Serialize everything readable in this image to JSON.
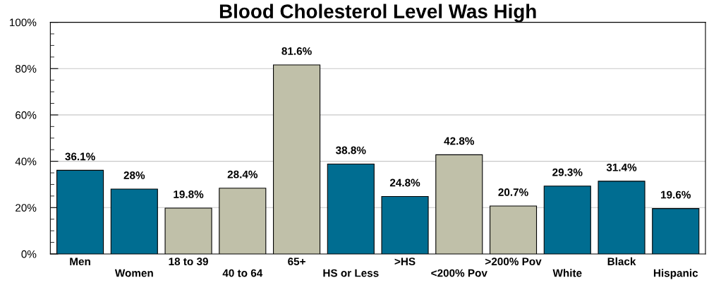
{
  "chart_data": {
    "type": "bar",
    "title": "Blood Cholesterol Level Was High",
    "categories": [
      "Men",
      "Women",
      "18 to 39",
      "40 to 64",
      "65+",
      "HS or Less",
      ">HS",
      "<200% Pov",
      ">200% Pov",
      "White",
      "Black",
      "Hispanic"
    ],
    "values": [
      36.1,
      28,
      19.8,
      28.4,
      81.6,
      38.8,
      24.8,
      42.8,
      20.7,
      29.3,
      31.4,
      19.6
    ],
    "colors": [
      "#006d91",
      "#006d91",
      "#c0c0a9",
      "#c0c0a9",
      "#c0c0a9",
      "#006d91",
      "#006d91",
      "#c0c0a9",
      "#c0c0a9",
      "#006d91",
      "#006d91",
      "#006d91"
    ],
    "value_labels": [
      "36.1%",
      "28%",
      "19.8%",
      "28.4%",
      "81.6%",
      "38.8%",
      "24.8%",
      "42.8%",
      "20.7%",
      "29.3%",
      "31.4%",
      "19.6%"
    ],
    "ylim": [
      0,
      100
    ],
    "yticks": [
      {
        "value": 0,
        "label": "0%"
      },
      {
        "value": 5,
        "label": null
      },
      {
        "value": 10,
        "label": null
      },
      {
        "value": 15,
        "label": null
      },
      {
        "value": 20,
        "label": "20%"
      },
      {
        "value": 25,
        "label": null
      },
      {
        "value": 30,
        "label": null
      },
      {
        "value": 35,
        "label": null
      },
      {
        "value": 40,
        "label": "40%"
      },
      {
        "value": 45,
        "label": null
      },
      {
        "value": 50,
        "label": null
      },
      {
        "value": 55,
        "label": null
      },
      {
        "value": 60,
        "label": "60%"
      },
      {
        "value": 65,
        "label": null
      },
      {
        "value": 70,
        "label": null
      },
      {
        "value": 75,
        "label": null
      },
      {
        "value": 80,
        "label": "80%"
      },
      {
        "value": 85,
        "label": null
      },
      {
        "value": 90,
        "label": null
      },
      {
        "value": 95,
        "label": null
      },
      {
        "value": 100,
        "label": "100%"
      }
    ],
    "grid": "y",
    "legend": false
  }
}
